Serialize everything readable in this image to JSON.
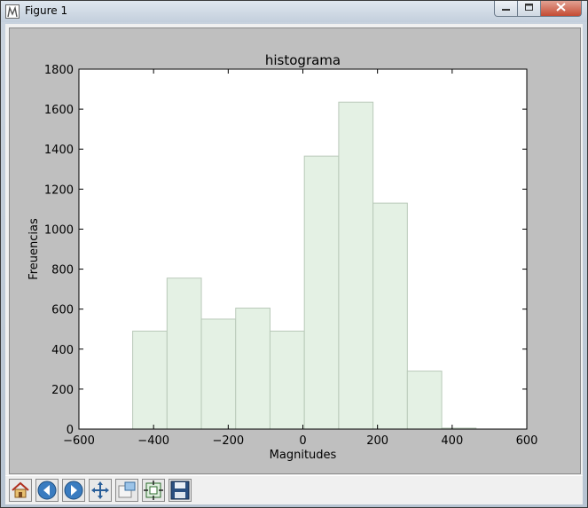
{
  "window": {
    "title": "Figure 1",
    "minimize_icon": "minimize-icon",
    "maximize_icon": "maximize-icon",
    "close_icon": "close-icon"
  },
  "toolbar": {
    "buttons": [
      {
        "name": "home-button",
        "icon": "home-icon"
      },
      {
        "name": "back-button",
        "icon": "arrow-left-icon"
      },
      {
        "name": "forward-button",
        "icon": "arrow-right-icon"
      },
      {
        "name": "pan-button",
        "icon": "move-icon"
      },
      {
        "name": "zoom-button",
        "icon": "zoom-rect-icon"
      },
      {
        "name": "subplots-button",
        "icon": "subplots-icon"
      },
      {
        "name": "save-button",
        "icon": "save-icon"
      }
    ]
  },
  "chart_data": {
    "type": "bar",
    "title": "histograma",
    "xlabel": "Magnitudes",
    "ylabel": "Freuencias",
    "xlim": [
      -600,
      600
    ],
    "ylim": [
      0,
      1800
    ],
    "xticks": [
      -600,
      -400,
      -200,
      0,
      200,
      400,
      600
    ],
    "xtick_labels": [
      "−600",
      "−400",
      "−200",
      "0",
      "200",
      "400",
      "600"
    ],
    "yticks": [
      0,
      200,
      400,
      600,
      800,
      1000,
      1200,
      1400,
      1600,
      1800
    ],
    "bin_edges": [
      -456,
      -364,
      -272,
      -180,
      -88,
      4,
      96,
      188,
      280,
      372,
      464
    ],
    "values": [
      490,
      755,
      550,
      605,
      490,
      1365,
      1635,
      1130,
      290,
      5
    ],
    "bar_color": "#e4f1e4",
    "edge_color": "#b9c9b9",
    "grid": false
  }
}
